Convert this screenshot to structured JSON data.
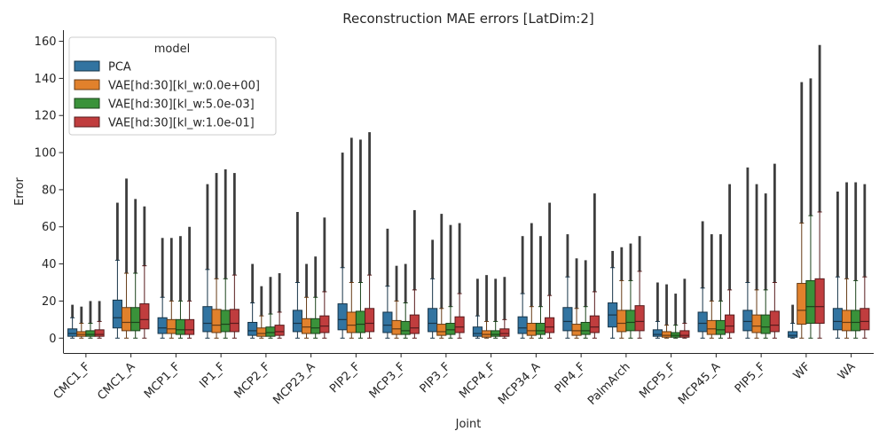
{
  "chart_data": {
    "type": "boxplot",
    "title": "Reconstruction MAE errors [LatDim:2]",
    "xlabel": "Joint",
    "ylabel": "Error",
    "ylim": [
      -8,
      166
    ],
    "yticks": [
      0,
      20,
      40,
      60,
      80,
      100,
      120,
      140,
      160
    ],
    "grid": false,
    "legend": {
      "title": "model",
      "placement": "top-left"
    },
    "categories": [
      "CMC1_F",
      "CMC1_A",
      "MCP1_F",
      "IP1_F",
      "MCP2_F",
      "MCP23_A",
      "PIP2_F",
      "MCP3_F",
      "PIP3_F",
      "MCP4_F",
      "MCP34_A",
      "PIP4_F",
      "PalmArch",
      "MCP5_F",
      "MCP45_A",
      "PIP5_F",
      "WF",
      "WA"
    ],
    "series": [
      {
        "name": "PCA",
        "color": "#3274a1",
        "boxes": [
          {
            "lo": 0,
            "q1": 1,
            "med": 2.5,
            "q3": 5,
            "hi": 11,
            "fmax": 18
          },
          {
            "lo": 0,
            "q1": 5.5,
            "med": 11,
            "q3": 20.5,
            "hi": 42,
            "fmax": 73
          },
          {
            "lo": 0,
            "q1": 2.5,
            "med": 5.5,
            "q3": 11,
            "hi": 22,
            "fmax": 54
          },
          {
            "lo": 0,
            "q1": 3.5,
            "med": 8,
            "q3": 17,
            "hi": 37,
            "fmax": 83
          },
          {
            "lo": 0,
            "q1": 1.5,
            "med": 4,
            "q3": 8.5,
            "hi": 19,
            "fmax": 40
          },
          {
            "lo": 0,
            "q1": 3.5,
            "med": 8,
            "q3": 15,
            "hi": 30,
            "fmax": 68
          },
          {
            "lo": 0,
            "q1": 4.5,
            "med": 10,
            "q3": 18.5,
            "hi": 38,
            "fmax": 100
          },
          {
            "lo": 0,
            "q1": 3,
            "med": 7,
            "q3": 14,
            "hi": 28,
            "fmax": 59
          },
          {
            "lo": 0,
            "q1": 3.5,
            "med": 8,
            "q3": 16,
            "hi": 32,
            "fmax": 53
          },
          {
            "lo": 0,
            "q1": 1,
            "med": 2.5,
            "q3": 6,
            "hi": 12,
            "fmax": 32
          },
          {
            "lo": 0,
            "q1": 2.5,
            "med": 5.5,
            "q3": 11.5,
            "hi": 24,
            "fmax": 55
          },
          {
            "lo": 0,
            "q1": 4,
            "med": 9,
            "q3": 16.5,
            "hi": 33,
            "fmax": 56
          },
          {
            "lo": 0,
            "q1": 6,
            "med": 12.5,
            "q3": 19,
            "hi": 38,
            "fmax": 47
          },
          {
            "lo": 0,
            "q1": 1,
            "med": 2,
            "q3": 4.5,
            "hi": 9,
            "fmax": 30
          },
          {
            "lo": 0,
            "q1": 3.5,
            "med": 8,
            "q3": 14,
            "hi": 27,
            "fmax": 63
          },
          {
            "lo": 0,
            "q1": 4,
            "med": 9,
            "q3": 15,
            "hi": 30,
            "fmax": 92
          },
          {
            "lo": 0,
            "q1": 0.5,
            "med": 1.5,
            "q3": 3.5,
            "hi": 8,
            "fmax": 18
          },
          {
            "lo": 0,
            "q1": 4.5,
            "med": 9,
            "q3": 16,
            "hi": 33,
            "fmax": 79
          }
        ]
      },
      {
        "name": "VAE[hd:30][kl_w:0.0e+00]",
        "color": "#e1812c",
        "boxes": [
          {
            "lo": 0,
            "q1": 1,
            "med": 2,
            "q3": 3.5,
            "hi": 8,
            "fmax": 17
          },
          {
            "lo": 0,
            "q1": 4,
            "med": 8.5,
            "q3": 16.5,
            "hi": 35,
            "fmax": 86
          },
          {
            "lo": 0,
            "q1": 2.5,
            "med": 5,
            "q3": 10,
            "hi": 20,
            "fmax": 54
          },
          {
            "lo": 0,
            "q1": 3,
            "med": 7,
            "q3": 15.5,
            "hi": 32,
            "fmax": 89
          },
          {
            "lo": 0,
            "q1": 1,
            "med": 2.5,
            "q3": 5.5,
            "hi": 12,
            "fmax": 28
          },
          {
            "lo": 0,
            "q1": 2.5,
            "med": 6,
            "q3": 10.5,
            "hi": 22,
            "fmax": 40
          },
          {
            "lo": 0,
            "q1": 3,
            "med": 7,
            "q3": 14,
            "hi": 30,
            "fmax": 108
          },
          {
            "lo": 0,
            "q1": 2,
            "med": 5,
            "q3": 9.5,
            "hi": 20,
            "fmax": 39
          },
          {
            "lo": 0,
            "q1": 1.5,
            "med": 3.5,
            "q3": 7.5,
            "hi": 16,
            "fmax": 67
          },
          {
            "lo": 0,
            "q1": 0.5,
            "med": 2,
            "q3": 4,
            "hi": 9,
            "fmax": 34
          },
          {
            "lo": 0,
            "q1": 1.5,
            "med": 4,
            "q3": 8,
            "hi": 17,
            "fmax": 62
          },
          {
            "lo": 0,
            "q1": 1.5,
            "med": 4,
            "q3": 7.5,
            "hi": 16,
            "fmax": 43
          },
          {
            "lo": 0,
            "q1": 3.5,
            "med": 8,
            "q3": 15,
            "hi": 31,
            "fmax": 49
          },
          {
            "lo": 0,
            "q1": 0.5,
            "med": 1.5,
            "q3": 3.5,
            "hi": 7,
            "fmax": 29
          },
          {
            "lo": 0,
            "q1": 2,
            "med": 5,
            "q3": 9.5,
            "hi": 20,
            "fmax": 56
          },
          {
            "lo": 0,
            "q1": 3,
            "med": 6.5,
            "q3": 12.5,
            "hi": 26,
            "fmax": 83
          },
          {
            "lo": 0,
            "q1": 7.5,
            "med": 15,
            "q3": 29.5,
            "hi": 62,
            "fmax": 138
          },
          {
            "lo": 0,
            "q1": 4,
            "med": 8.5,
            "q3": 15,
            "hi": 32,
            "fmax": 84
          }
        ]
      },
      {
        "name": "VAE[hd:30][kl_w:5.0e-03]",
        "color": "#3a923a",
        "boxes": [
          {
            "lo": 0,
            "q1": 1,
            "med": 2,
            "q3": 4,
            "hi": 8,
            "fmax": 20
          },
          {
            "lo": 0,
            "q1": 4,
            "med": 8.5,
            "q3": 16.5,
            "hi": 35,
            "fmax": 75
          },
          {
            "lo": 0,
            "q1": 2,
            "med": 4.5,
            "q3": 10,
            "hi": 20,
            "fmax": 55
          },
          {
            "lo": 0,
            "q1": 3.5,
            "med": 7.5,
            "q3": 15,
            "hi": 32,
            "fmax": 91
          },
          {
            "lo": 0,
            "q1": 1,
            "med": 3,
            "q3": 6,
            "hi": 13,
            "fmax": 33
          },
          {
            "lo": 0,
            "q1": 2.5,
            "med": 5.5,
            "q3": 10.5,
            "hi": 22,
            "fmax": 44
          },
          {
            "lo": 0,
            "q1": 3,
            "med": 7.5,
            "q3": 14.5,
            "hi": 30,
            "fmax": 107
          },
          {
            "lo": 0,
            "q1": 2,
            "med": 4,
            "q3": 9,
            "hi": 19,
            "fmax": 40
          },
          {
            "lo": 0,
            "q1": 2,
            "med": 4.5,
            "q3": 8,
            "hi": 17,
            "fmax": 61
          },
          {
            "lo": 0,
            "q1": 1,
            "med": 2,
            "q3": 4,
            "hi": 9,
            "fmax": 32
          },
          {
            "lo": 0,
            "q1": 2,
            "med": 4,
            "q3": 8,
            "hi": 17,
            "fmax": 55
          },
          {
            "lo": 0,
            "q1": 2,
            "med": 4,
            "q3": 8.5,
            "hi": 17,
            "fmax": 42
          },
          {
            "lo": 0,
            "q1": 4,
            "med": 8.5,
            "q3": 15,
            "hi": 31,
            "fmax": 51
          },
          {
            "lo": 0,
            "q1": 0.5,
            "med": 1.5,
            "q3": 3,
            "hi": 7,
            "fmax": 24
          },
          {
            "lo": 0,
            "q1": 2,
            "med": 4.5,
            "q3": 9.5,
            "hi": 20,
            "fmax": 56
          },
          {
            "lo": 0,
            "q1": 2.5,
            "med": 6,
            "q3": 12.5,
            "hi": 26,
            "fmax": 78
          },
          {
            "lo": 0,
            "q1": 8,
            "med": 17,
            "q3": 31,
            "hi": 66,
            "fmax": 140
          },
          {
            "lo": 0,
            "q1": 4,
            "med": 8.5,
            "q3": 15,
            "hi": 31,
            "fmax": 84
          }
        ]
      },
      {
        "name": "VAE[hd:30][kl_w:1.0e-01]",
        "color": "#c03d3e",
        "boxes": [
          {
            "lo": 0,
            "q1": 1,
            "med": 2,
            "q3": 4.5,
            "hi": 9,
            "fmax": 20
          },
          {
            "lo": 0,
            "q1": 5,
            "med": 10,
            "q3": 18.5,
            "hi": 39,
            "fmax": 71
          },
          {
            "lo": 0,
            "q1": 2,
            "med": 4.5,
            "q3": 10,
            "hi": 20,
            "fmax": 60
          },
          {
            "lo": 0,
            "q1": 3.5,
            "med": 8,
            "q3": 15.5,
            "hi": 34,
            "fmax": 89
          },
          {
            "lo": 0,
            "q1": 1.5,
            "med": 3.5,
            "q3": 7,
            "hi": 14,
            "fmax": 35
          },
          {
            "lo": 0,
            "q1": 3,
            "med": 6.5,
            "q3": 12,
            "hi": 25,
            "fmax": 65
          },
          {
            "lo": 0,
            "q1": 3.5,
            "med": 8,
            "q3": 16,
            "hi": 34,
            "fmax": 111
          },
          {
            "lo": 0,
            "q1": 2.5,
            "med": 5.5,
            "q3": 12.5,
            "hi": 26,
            "fmax": 69
          },
          {
            "lo": 0,
            "q1": 3,
            "med": 6,
            "q3": 11.5,
            "hi": 24,
            "fmax": 62
          },
          {
            "lo": 0,
            "q1": 1,
            "med": 2.5,
            "q3": 5,
            "hi": 10,
            "fmax": 33
          },
          {
            "lo": 0,
            "q1": 3,
            "med": 6,
            "q3": 11,
            "hi": 23,
            "fmax": 73
          },
          {
            "lo": 0,
            "q1": 3,
            "med": 6,
            "q3": 12,
            "hi": 25,
            "fmax": 78
          },
          {
            "lo": 0,
            "q1": 4,
            "med": 9,
            "q3": 17.5,
            "hi": 36,
            "fmax": 55
          },
          {
            "lo": 0,
            "q1": 0.5,
            "med": 1.5,
            "q3": 4,
            "hi": 8,
            "fmax": 32
          },
          {
            "lo": 0,
            "q1": 3,
            "med": 6.5,
            "q3": 12.5,
            "hi": 26,
            "fmax": 83
          },
          {
            "lo": 0,
            "q1": 3.5,
            "med": 7,
            "q3": 14.5,
            "hi": 30,
            "fmax": 94
          },
          {
            "lo": 0,
            "q1": 8,
            "med": 17,
            "q3": 32,
            "hi": 68,
            "fmax": 158
          },
          {
            "lo": 0,
            "q1": 4.5,
            "med": 9,
            "q3": 16,
            "hi": 33,
            "fmax": 83
          }
        ]
      }
    ]
  }
}
